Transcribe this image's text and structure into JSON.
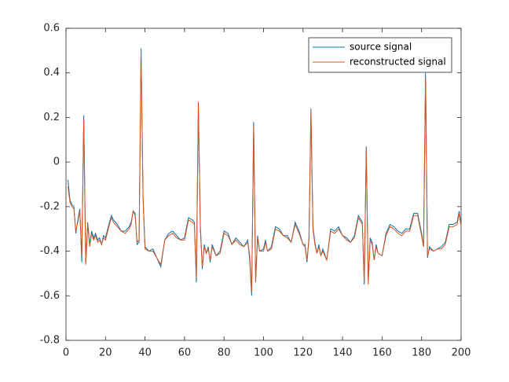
{
  "chart_data": {
    "type": "line",
    "x": [
      1,
      2,
      3,
      4,
      5,
      6,
      7,
      8,
      9,
      10,
      11,
      12,
      13,
      14,
      15,
      16,
      17,
      18,
      19,
      20,
      22,
      23,
      24,
      26,
      28,
      30,
      32,
      33,
      34,
      35,
      36,
      37,
      38,
      39,
      40,
      42,
      44,
      46,
      48,
      50,
      52,
      54,
      56,
      58,
      60,
      62,
      64,
      65,
      66,
      67,
      68,
      69,
      70,
      71,
      72,
      73,
      74,
      76,
      78,
      80,
      82,
      84,
      86,
      88,
      90,
      92,
      93,
      94,
      95,
      96,
      97,
      98,
      100,
      101,
      102,
      104,
      106,
      108,
      110,
      112,
      114,
      116,
      118,
      120,
      121,
      122,
      123,
      124,
      125,
      126,
      127,
      128,
      129,
      130,
      132,
      134,
      136,
      138,
      140,
      142,
      144,
      146,
      148,
      150,
      151,
      152,
      153,
      154,
      155,
      156,
      157,
      158,
      160,
      162,
      164,
      166,
      168,
      170,
      172,
      174,
      176,
      178,
      180,
      181,
      182,
      183,
      184,
      186,
      188,
      190,
      192,
      194,
      196,
      198,
      199,
      200
    ],
    "series": [
      {
        "name": "source signal",
        "color": "#0072bd",
        "values": [
          -0.08,
          -0.17,
          -0.19,
          -0.2,
          -0.32,
          -0.26,
          -0.21,
          -0.45,
          0.21,
          -0.45,
          -0.27,
          -0.37,
          -0.31,
          -0.34,
          -0.32,
          -0.35,
          -0.34,
          -0.37,
          -0.33,
          -0.34,
          -0.27,
          -0.24,
          -0.26,
          -0.28,
          -0.31,
          -0.31,
          -0.29,
          -0.27,
          -0.22,
          -0.23,
          -0.37,
          -0.36,
          0.51,
          -0.15,
          -0.38,
          -0.4,
          -0.39,
          -0.43,
          -0.47,
          -0.35,
          -0.32,
          -0.31,
          -0.33,
          -0.35,
          -0.34,
          -0.25,
          -0.26,
          -0.27,
          -0.54,
          0.26,
          -0.28,
          -0.48,
          -0.37,
          -0.41,
          -0.38,
          -0.45,
          -0.37,
          -0.42,
          -0.4,
          -0.31,
          -0.32,
          -0.37,
          -0.34,
          -0.36,
          -0.38,
          -0.35,
          -0.44,
          -0.6,
          0.18,
          -0.53,
          -0.33,
          -0.4,
          -0.39,
          -0.35,
          -0.4,
          -0.38,
          -0.29,
          -0.3,
          -0.33,
          -0.33,
          -0.36,
          -0.27,
          -0.31,
          -0.37,
          -0.37,
          -0.45,
          -0.34,
          0.24,
          -0.29,
          -0.36,
          -0.41,
          -0.37,
          -0.42,
          -0.39,
          -0.44,
          -0.3,
          -0.31,
          -0.29,
          -0.33,
          -0.34,
          -0.36,
          -0.33,
          -0.24,
          -0.27,
          -0.55,
          0.07,
          -0.53,
          -0.34,
          -0.36,
          -0.44,
          -0.37,
          -0.41,
          -0.42,
          -0.32,
          -0.28,
          -0.29,
          -0.31,
          -0.32,
          -0.3,
          -0.3,
          -0.23,
          -0.23,
          -0.32,
          -0.38,
          0.4,
          -0.43,
          -0.38,
          -0.4,
          -0.39,
          -0.38,
          -0.36,
          -0.28,
          -0.28,
          -0.27,
          -0.22,
          -0.28
        ]
      },
      {
        "name": "reconstructed signal",
        "color": "#d95319",
        "values": [
          -0.11,
          -0.18,
          -0.2,
          -0.21,
          -0.31,
          -0.27,
          -0.22,
          -0.42,
          0.19,
          -0.46,
          -0.28,
          -0.38,
          -0.32,
          -0.35,
          -0.33,
          -0.36,
          -0.35,
          -0.37,
          -0.34,
          -0.35,
          -0.28,
          -0.25,
          -0.27,
          -0.29,
          -0.31,
          -0.32,
          -0.3,
          -0.28,
          -0.22,
          -0.24,
          -0.36,
          -0.35,
          0.5,
          -0.16,
          -0.39,
          -0.4,
          -0.4,
          -0.43,
          -0.46,
          -0.35,
          -0.33,
          -0.32,
          -0.34,
          -0.35,
          -0.35,
          -0.26,
          -0.27,
          -0.28,
          -0.52,
          0.27,
          -0.3,
          -0.47,
          -0.38,
          -0.41,
          -0.39,
          -0.44,
          -0.38,
          -0.42,
          -0.41,
          -0.32,
          -0.33,
          -0.37,
          -0.35,
          -0.37,
          -0.38,
          -0.36,
          -0.42,
          -0.58,
          0.16,
          -0.54,
          -0.34,
          -0.4,
          -0.4,
          -0.36,
          -0.4,
          -0.39,
          -0.3,
          -0.31,
          -0.33,
          -0.34,
          -0.36,
          -0.28,
          -0.32,
          -0.37,
          -0.38,
          -0.44,
          -0.35,
          0.23,
          -0.3,
          -0.37,
          -0.41,
          -0.38,
          -0.42,
          -0.4,
          -0.44,
          -0.31,
          -0.32,
          -0.3,
          -0.33,
          -0.35,
          -0.36,
          -0.34,
          -0.25,
          -0.28,
          -0.54,
          0.06,
          -0.55,
          -0.35,
          -0.37,
          -0.44,
          -0.38,
          -0.41,
          -0.42,
          -0.33,
          -0.29,
          -0.3,
          -0.32,
          -0.33,
          -0.31,
          -0.31,
          -0.24,
          -0.24,
          -0.33,
          -0.38,
          0.38,
          -0.42,
          -0.39,
          -0.4,
          -0.39,
          -0.39,
          -0.37,
          -0.29,
          -0.29,
          -0.28,
          -0.23,
          -0.29
        ]
      }
    ],
    "xlim": [
      0,
      200
    ],
    "xticks": [
      0,
      20,
      40,
      60,
      80,
      100,
      120,
      140,
      160,
      180,
      200
    ],
    "ylim": [
      -0.8,
      0.6
    ],
    "yticks": [
      -0.8,
      -0.6,
      -0.4,
      -0.2,
      0,
      0.2,
      0.4,
      0.6
    ],
    "legend": "northeast",
    "grid": false
  }
}
